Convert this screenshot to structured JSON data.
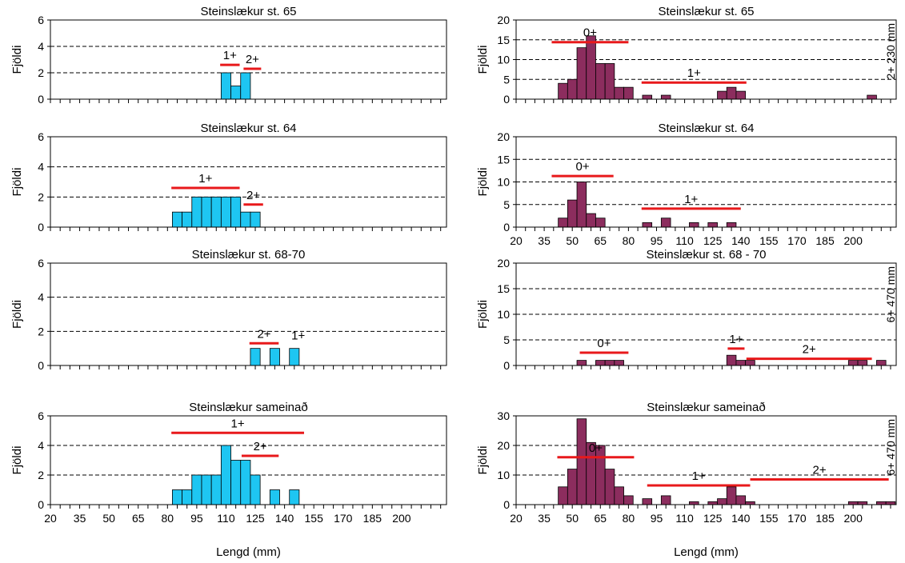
{
  "figure": {
    "xlabel": "Lengd (mm)",
    "ylabel": "Fjöldi",
    "x_tick_labels": [
      "20",
      "35",
      "50",
      "65",
      "80",
      "95",
      "110",
      "125",
      "140",
      "155",
      "170",
      "185",
      "200"
    ]
  },
  "chart_data": [
    {
      "type": "bar",
      "column": "left",
      "title": "Steinslækur st. 65",
      "ylim": [
        0,
        6
      ],
      "yticks": [
        0,
        2,
        4,
        6
      ],
      "bin_width": 5,
      "bars": [
        {
          "x": 110,
          "y": 2
        },
        {
          "x": 115,
          "y": 1
        },
        {
          "x": 120,
          "y": 2
        }
      ],
      "age_classes": [
        {
          "label": "1+",
          "from": 107,
          "to": 117,
          "y": 2.6
        },
        {
          "label": "2+",
          "from": 119,
          "to": 128,
          "y": 2.3
        }
      ],
      "side_note": "",
      "show_x_tick_labels": false,
      "show_xlabel": false,
      "bar_color": "#1ec6f2"
    },
    {
      "type": "bar",
      "column": "left",
      "title": "Steinslækur st. 64",
      "ylim": [
        0,
        6
      ],
      "yticks": [
        0,
        2,
        4,
        6
      ],
      "bin_width": 5,
      "bars": [
        {
          "x": 85,
          "y": 1
        },
        {
          "x": 90,
          "y": 1
        },
        {
          "x": 95,
          "y": 2
        },
        {
          "x": 100,
          "y": 2
        },
        {
          "x": 105,
          "y": 2
        },
        {
          "x": 110,
          "y": 2
        },
        {
          "x": 115,
          "y": 2
        },
        {
          "x": 120,
          "y": 1
        },
        {
          "x": 125,
          "y": 1
        }
      ],
      "age_classes": [
        {
          "label": "1+",
          "from": 82,
          "to": 117,
          "y": 2.6
        },
        {
          "label": "2+",
          "from": 119,
          "to": 129,
          "y": 1.5
        }
      ],
      "side_note": "",
      "show_x_tick_labels": false,
      "show_xlabel": false,
      "bar_color": "#1ec6f2"
    },
    {
      "type": "bar",
      "column": "left",
      "title": "Steinslækur st. 68-70",
      "ylim": [
        0,
        6
      ],
      "yticks": [
        0,
        2,
        4,
        6
      ],
      "bin_width": 5,
      "bars": [
        {
          "x": 125,
          "y": 1
        },
        {
          "x": 135,
          "y": 1
        },
        {
          "x": 145,
          "y": 1
        }
      ],
      "age_classes": [
        {
          "label": "2+",
          "from": 122,
          "to": 137,
          "y": 1.3
        },
        {
          "label": "1+",
          "from": 0,
          "to": 0,
          "y": 1.2,
          "label_x": 147
        }
      ],
      "side_note": "",
      "show_x_tick_labels": false,
      "show_xlabel": false,
      "bar_color": "#1ec6f2"
    },
    {
      "type": "bar",
      "column": "left",
      "title": "Steinslækur sameinað",
      "ylim": [
        0,
        6
      ],
      "yticks": [
        0,
        2,
        4,
        6
      ],
      "bin_width": 5,
      "bars": [
        {
          "x": 85,
          "y": 1
        },
        {
          "x": 90,
          "y": 1
        },
        {
          "x": 95,
          "y": 2
        },
        {
          "x": 100,
          "y": 2
        },
        {
          "x": 105,
          "y": 2
        },
        {
          "x": 110,
          "y": 4
        },
        {
          "x": 115,
          "y": 3
        },
        {
          "x": 120,
          "y": 3
        },
        {
          "x": 125,
          "y": 2
        },
        {
          "x": 135,
          "y": 1
        },
        {
          "x": 145,
          "y": 1
        }
      ],
      "age_classes": [
        {
          "label": "1+",
          "from": 82,
          "to": 150,
          "y": 4.85
        },
        {
          "label": "2+",
          "from": 118,
          "to": 137,
          "y": 3.3
        }
      ],
      "side_note": "",
      "show_x_tick_labels": true,
      "show_xlabel": true,
      "bar_color": "#1ec6f2"
    },
    {
      "type": "bar",
      "column": "right",
      "title": "Steinslækur st. 65",
      "ylim": [
        0,
        20
      ],
      "yticks": [
        0,
        5,
        10,
        15,
        20
      ],
      "bin_width": 5,
      "bars": [
        {
          "x": 45,
          "y": 4
        },
        {
          "x": 50,
          "y": 5
        },
        {
          "x": 55,
          "y": 13
        },
        {
          "x": 60,
          "y": 16
        },
        {
          "x": 65,
          "y": 9
        },
        {
          "x": 70,
          "y": 9
        },
        {
          "x": 75,
          "y": 3
        },
        {
          "x": 80,
          "y": 3
        },
        {
          "x": 90,
          "y": 1
        },
        {
          "x": 100,
          "y": 1
        },
        {
          "x": 130,
          "y": 2
        },
        {
          "x": 135,
          "y": 3
        },
        {
          "x": 140,
          "y": 2
        },
        {
          "x": 210,
          "y": 1
        }
      ],
      "age_classes": [
        {
          "label": "0+",
          "from": 39,
          "to": 80,
          "y": 14.4
        },
        {
          "label": "1+",
          "from": 87,
          "to": 143,
          "y": 4.2
        }
      ],
      "side_note": "2+ 230 mm",
      "show_x_tick_labels": false,
      "show_xlabel": false,
      "bar_color": "#8c2d5e"
    },
    {
      "type": "bar",
      "column": "right",
      "title": "Steinslækur st. 64",
      "ylim": [
        0,
        20
      ],
      "yticks": [
        0,
        5,
        10,
        15,
        20
      ],
      "bin_width": 5,
      "bars": [
        {
          "x": 45,
          "y": 2
        },
        {
          "x": 50,
          "y": 6
        },
        {
          "x": 55,
          "y": 10
        },
        {
          "x": 60,
          "y": 3
        },
        {
          "x": 65,
          "y": 2
        },
        {
          "x": 90,
          "y": 1
        },
        {
          "x": 100,
          "y": 2
        },
        {
          "x": 115,
          "y": 1
        },
        {
          "x": 125,
          "y": 1
        },
        {
          "x": 135,
          "y": 1
        }
      ],
      "age_classes": [
        {
          "label": "0+",
          "from": 39,
          "to": 72,
          "y": 11.3
        },
        {
          "label": "1+",
          "from": 87,
          "to": 140,
          "y": 4.1
        }
      ],
      "side_note": "",
      "show_x_tick_labels": true,
      "show_xlabel": false,
      "bar_color": "#8c2d5e"
    },
    {
      "type": "bar",
      "column": "right",
      "title": "Steinslækur st. 68 - 70",
      "ylim": [
        0,
        20
      ],
      "yticks": [
        0,
        5,
        10,
        15,
        20
      ],
      "bin_width": 5,
      "bars": [
        {
          "x": 55,
          "y": 1
        },
        {
          "x": 65,
          "y": 1
        },
        {
          "x": 70,
          "y": 1
        },
        {
          "x": 75,
          "y": 1
        },
        {
          "x": 135,
          "y": 2
        },
        {
          "x": 140,
          "y": 1
        },
        {
          "x": 145,
          "y": 1
        },
        {
          "x": 200,
          "y": 1
        },
        {
          "x": 205,
          "y": 1
        },
        {
          "x": 215,
          "y": 1
        }
      ],
      "age_classes": [
        {
          "label": "0+",
          "from": 54,
          "to": 80,
          "y": 2.5
        },
        {
          "label": "1+",
          "from": 133,
          "to": 142,
          "y": 3.3
        },
        {
          "label": "2+",
          "from": 143,
          "to": 210,
          "y": 1.3
        }
      ],
      "side_note": "6+ 470 mm",
      "show_x_tick_labels": false,
      "show_xlabel": false,
      "bar_color": "#8c2d5e"
    },
    {
      "type": "bar",
      "column": "right",
      "title": "Steinslækur sameinað",
      "ylim": [
        0,
        30
      ],
      "yticks": [
        0,
        10,
        20,
        30
      ],
      "bin_width": 5,
      "bars": [
        {
          "x": 45,
          "y": 6
        },
        {
          "x": 50,
          "y": 12
        },
        {
          "x": 55,
          "y": 29
        },
        {
          "x": 60,
          "y": 21
        },
        {
          "x": 65,
          "y": 20
        },
        {
          "x": 70,
          "y": 12
        },
        {
          "x": 75,
          "y": 6
        },
        {
          "x": 80,
          "y": 3
        },
        {
          "x": 90,
          "y": 2
        },
        {
          "x": 100,
          "y": 3
        },
        {
          "x": 115,
          "y": 1
        },
        {
          "x": 125,
          "y": 1
        },
        {
          "x": 130,
          "y": 2
        },
        {
          "x": 135,
          "y": 6
        },
        {
          "x": 140,
          "y": 3
        },
        {
          "x": 145,
          "y": 1
        },
        {
          "x": 200,
          "y": 1
        },
        {
          "x": 205,
          "y": 1
        },
        {
          "x": 215,
          "y": 1
        },
        {
          "x": 220,
          "y": 1
        }
      ],
      "age_classes": [
        {
          "label": "0+",
          "from": 42,
          "to": 83,
          "y": 16
        },
        {
          "label": "1+",
          "from": 90,
          "to": 145,
          "y": 6.5
        },
        {
          "label": "2+",
          "from": 145,
          "to": 219,
          "y": 8.5
        }
      ],
      "side_note": "6+ 470 mm",
      "show_x_tick_labels": true,
      "show_xlabel": true,
      "bar_color": "#8c2d5e"
    }
  ]
}
